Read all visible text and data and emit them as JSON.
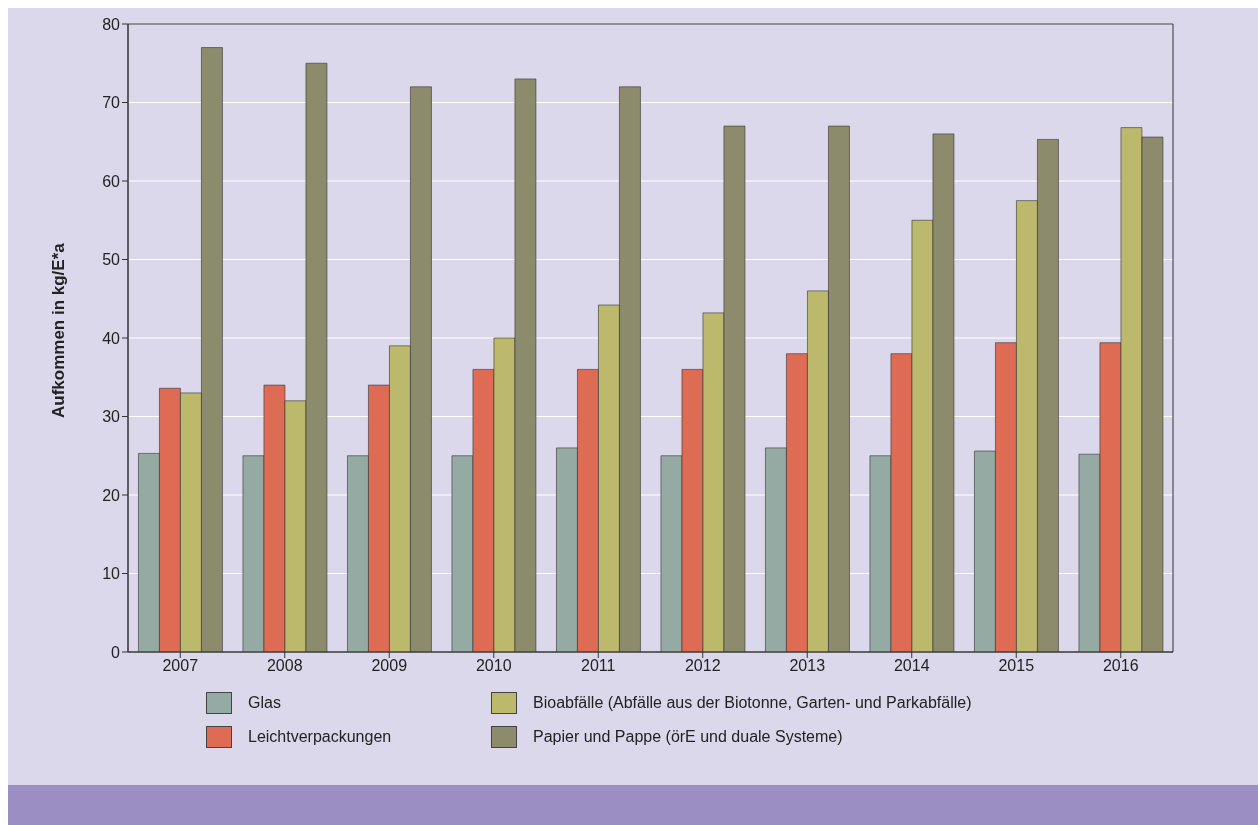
{
  "chart_data": {
    "type": "bar",
    "ylabel": "Aufkommen in kg/E*a",
    "categories": [
      "2007",
      "2008",
      "2009",
      "2010",
      "2011",
      "2012",
      "2013",
      "2014",
      "2015",
      "2016"
    ],
    "series": [
      {
        "name": "Glas",
        "color": "#96aaa4",
        "values": [
          25.3,
          25,
          25,
          25,
          26,
          25,
          26,
          25,
          25.6,
          25.2
        ]
      },
      {
        "name": "Leichtverpackungen",
        "color": "#de6c55",
        "values": [
          33.6,
          34,
          34,
          36,
          36,
          36,
          38,
          38,
          39.4,
          39.4
        ]
      },
      {
        "name": "Bioabfälle (Abfälle aus der Biotonne, Garten- und Parkabfälle)",
        "color": "#bcb96c",
        "values": [
          33,
          32,
          39,
          40,
          44.2,
          43.2,
          46,
          55,
          57.5,
          66.8
        ]
      },
      {
        "name": "Papier und Pappe (örE und duale Systeme)",
        "color": "#8c8c6c",
        "values": [
          77,
          75,
          72,
          73,
          72,
          67,
          67,
          66,
          65.3,
          65.6
        ]
      }
    ],
    "ylim": [
      0,
      80
    ],
    "yticks": [
      0,
      10,
      20,
      30,
      40,
      50,
      60,
      70,
      80
    ],
    "grid": "y",
    "legend": "bottom"
  }
}
